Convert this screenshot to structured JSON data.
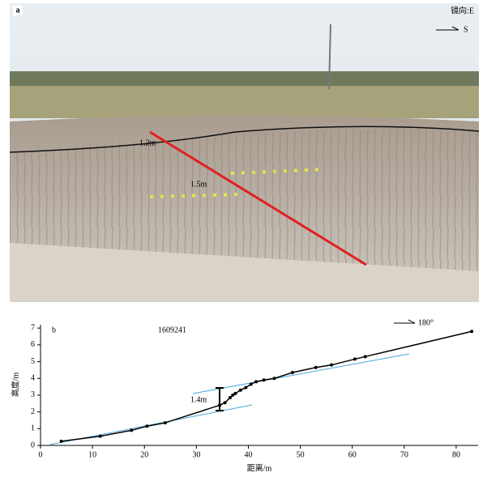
{
  "photo": {
    "label": "a",
    "direction": "镜向:E",
    "arrow_label": "S",
    "annotations": [
      "1.2m",
      "1.5m"
    ]
  },
  "chart_data": {
    "type": "line",
    "panel_label": "b",
    "title": "1609241",
    "direction_label": "180°",
    "annotation": "1.4m",
    "x_label": "距离/m",
    "y_label": "高度/m",
    "color": "#000000",
    "x": [
      4,
      11.5,
      17.5,
      20.5,
      24,
      34.5,
      35.5,
      36.5,
      37,
      37.5,
      38.5,
      39.5,
      40.5,
      41.5,
      43,
      45,
      48.5,
      53,
      56,
      60.5,
      62.5,
      83
    ],
    "values": [
      0.25,
      0.55,
      0.9,
      1.15,
      1.35,
      2.4,
      2.55,
      2.85,
      3.0,
      3.1,
      3.3,
      3.45,
      3.65,
      3.8,
      3.9,
      4.0,
      4.35,
      4.65,
      4.8,
      5.15,
      5.3,
      6.8
    ],
    "xlim": [
      0,
      85
    ],
    "ylim": [
      0,
      7.2
    ],
    "xticks": [
      0,
      10,
      20,
      30,
      40,
      50,
      60,
      70,
      80
    ],
    "yticks": [
      0,
      1,
      2,
      3,
      4,
      5,
      6,
      7
    ]
  }
}
